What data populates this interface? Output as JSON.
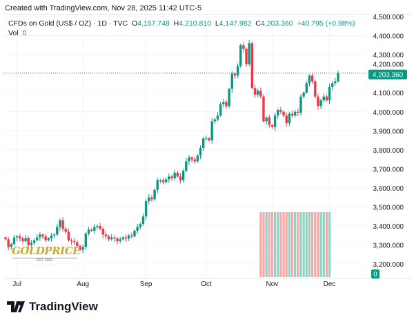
{
  "header": {
    "created": "Created with TradingView.com, Nov 28, 2025 11:42 UTC-5"
  },
  "legend": {
    "symbol": "CFDs on Gold (US$ / OZ) · 1D · TVC",
    "o_label": "O",
    "o": "4,157.748",
    "h_label": "H",
    "h": "4,210.810",
    "l_label": "L",
    "l": "4,147.982",
    "c_label": "C",
    "c": "4,203.360",
    "change": "+40.795 (+0.98%)",
    "vol_label": "Vol",
    "vol": "0"
  },
  "watermark": {
    "text": "GOLDPRICE",
    "sub": "EST. 2002"
  },
  "footer": {
    "brand": "TradingView"
  },
  "colors": {
    "up": "#089981",
    "down": "#f23645",
    "up_vol": "#8fd3c4",
    "down_vol": "#f7a9a7",
    "grid": "#f0f3fa"
  },
  "chart_data": {
    "type": "candlestick",
    "price_ticks": [
      "4,500.000",
      "4,400.000",
      "4,300.000",
      "4,200.000",
      "4,100.000",
      "4,000.000",
      "3,900.000",
      "3,800.000",
      "3,700.000",
      "3,600.000",
      "3,500.000",
      "3,400.000",
      "3,300.000",
      "3,200.000"
    ],
    "price_tick_values": [
      4500,
      4400,
      4300,
      4200,
      4100,
      4000,
      3900,
      3800,
      3700,
      3600,
      3500,
      3400,
      3300,
      3200
    ],
    "last_price": "4,203.360",
    "last_price_value": 4203.36,
    "volume_axis_label": "0",
    "x_labels": [
      {
        "label": "Jul",
        "bar": 4
      },
      {
        "label": "Aug",
        "bar": 27
      },
      {
        "label": "Sep",
        "bar": 49
      },
      {
        "label": "Oct",
        "bar": 70
      },
      {
        "label": "Nov",
        "bar": 93
      },
      {
        "label": "Dec",
        "bar": 113
      }
    ],
    "close": [
      3330,
      3290,
      3305,
      3340,
      3345,
      3335,
      3320,
      3337,
      3300,
      3310,
      3325,
      3340,
      3355,
      3345,
      3325,
      3335,
      3350,
      3355,
      3395,
      3430,
      3385,
      3370,
      3325,
      3320,
      3315,
      3295,
      3275,
      3290,
      3360,
      3380,
      3375,
      3395,
      3400,
      3385,
      3355,
      3345,
      3330,
      3340,
      3335,
      3320,
      3330,
      3340,
      3335,
      3350,
      3345,
      3375,
      3395,
      3410,
      3450,
      3530,
      3550,
      3540,
      3590,
      3640,
      3640,
      3630,
      3645,
      3660,
      3650,
      3680,
      3660,
      3640,
      3690,
      3740,
      3760,
      3750,
      3740,
      3770,
      3810,
      3860,
      3860,
      3850,
      3950,
      3960,
      3980,
      4040,
      4050,
      4030,
      4120,
      4200,
      4190,
      4240,
      4350,
      4330,
      4250,
      4360,
      4125,
      4090,
      4110,
      4080,
      3950,
      3970,
      3930,
      3920,
      3980,
      4010,
      4000,
      3980,
      3940,
      3990,
      3980,
      4000,
      3995,
      4080,
      4100,
      4150,
      4190,
      4160,
      4080,
      4030,
      4060,
      4080,
      4060,
      4130,
      4150,
      4160,
      4203.36
    ],
    "open_first": 3340,
    "yrange": [
      3140,
      4520
    ]
  }
}
